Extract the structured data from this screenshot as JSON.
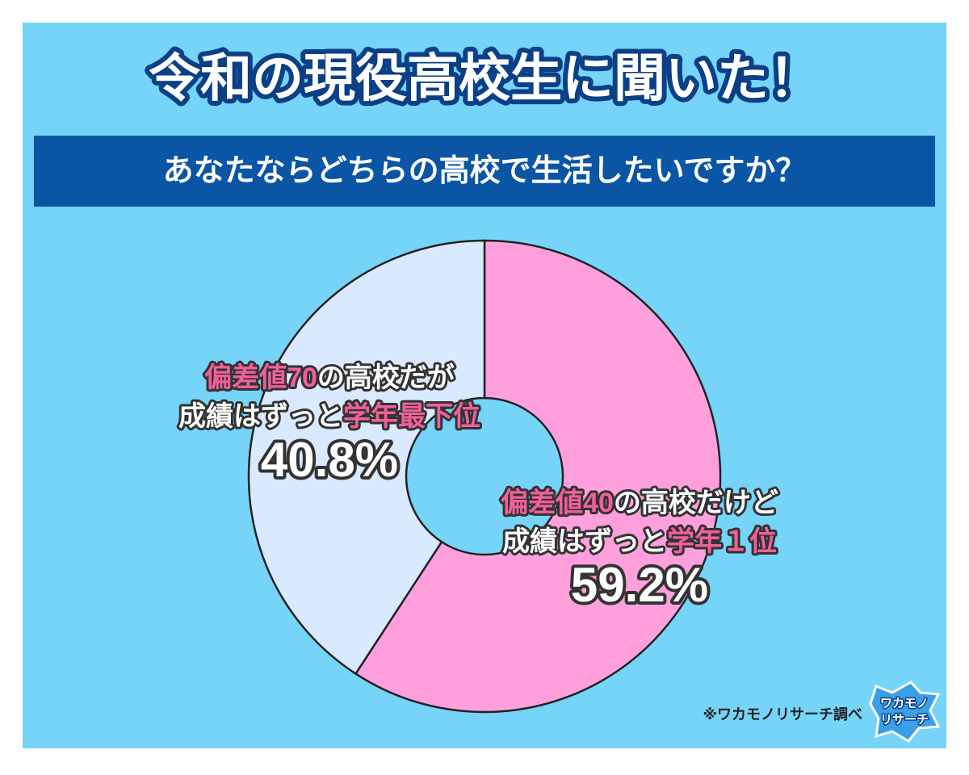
{
  "title": "令和の現役高校生に聞いた！",
  "subtitle": "あなたならどちらの高校で生活したいですか？",
  "source": "※ワカモノリサーチ調べ",
  "logo": [
    "ワカモノ",
    "リサーチ"
  ],
  "chart_data": {
    "type": "donut",
    "series": [
      {
        "name": "偏差値40の高校だけど成績はずっと学年１位",
        "color": "#ffa0dc",
        "value": 59.2,
        "value_label": "59.2%",
        "label_lines": [
          [
            {
              "text": "偏差値40",
              "color": "#f0609a"
            },
            {
              "text": "の高校だけど",
              "color": "#ffffff"
            }
          ],
          [
            {
              "text": "成績はずっと",
              "color": "#ffffff"
            },
            {
              "text": "学年１位",
              "color": "#f0609a"
            }
          ]
        ]
      },
      {
        "name": "偏差値70の高校だが成績はずっと学年最下位",
        "color": "#d9e9ff",
        "value": 40.8,
        "value_label": "40.8%",
        "label_lines": [
          [
            {
              "text": "偏差値70",
              "color": "#f0609a"
            },
            {
              "text": "の高校だが",
              "color": "#ffffff"
            }
          ],
          [
            {
              "text": "成績はずっと",
              "color": "#ffffff"
            },
            {
              "text": "学年最下位",
              "color": "#f0609a"
            }
          ]
        ]
      }
    ]
  }
}
